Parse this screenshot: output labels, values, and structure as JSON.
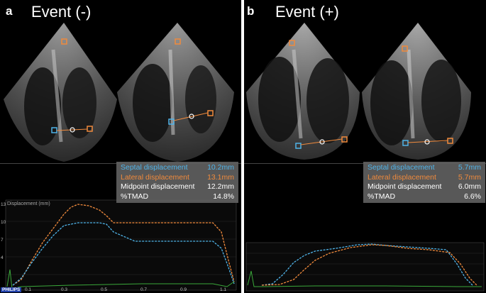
{
  "panels": [
    {
      "letter": "a",
      "title": "Event (-)",
      "measurements": [
        {
          "label": "Septal displacement",
          "value": "10.2mm"
        },
        {
          "label": "Lateral displacement",
          "value": "13.1mm"
        },
        {
          "label": "Midpoint displacement",
          "value": "12.2mm"
        },
        {
          "label": "%TMAD",
          "value": "14.8%"
        }
      ],
      "plot": {
        "title": "Displacement (mm)",
        "y_ticks": [
          "13",
          "10",
          "7",
          "4"
        ],
        "x_ticks": [
          "0.1",
          "0.3",
          "0.5",
          "0.7",
          "0.9",
          "1.1"
        ],
        "brand": "PHILIPS"
      }
    },
    {
      "letter": "b",
      "title": "Event (+)",
      "measurements": [
        {
          "label": "Septal displacement",
          "value": "5.7mm"
        },
        {
          "label": "Lateral displacement",
          "value": "5.7mm"
        },
        {
          "label": "Midpoint displacement",
          "value": "6.0mm"
        },
        {
          "label": "%TMAD",
          "value": "6.6%"
        }
      ]
    }
  ],
  "colors": {
    "septal": "#4fb3e8",
    "lateral": "#f08a3c",
    "ecg": "#3aa83a"
  }
}
